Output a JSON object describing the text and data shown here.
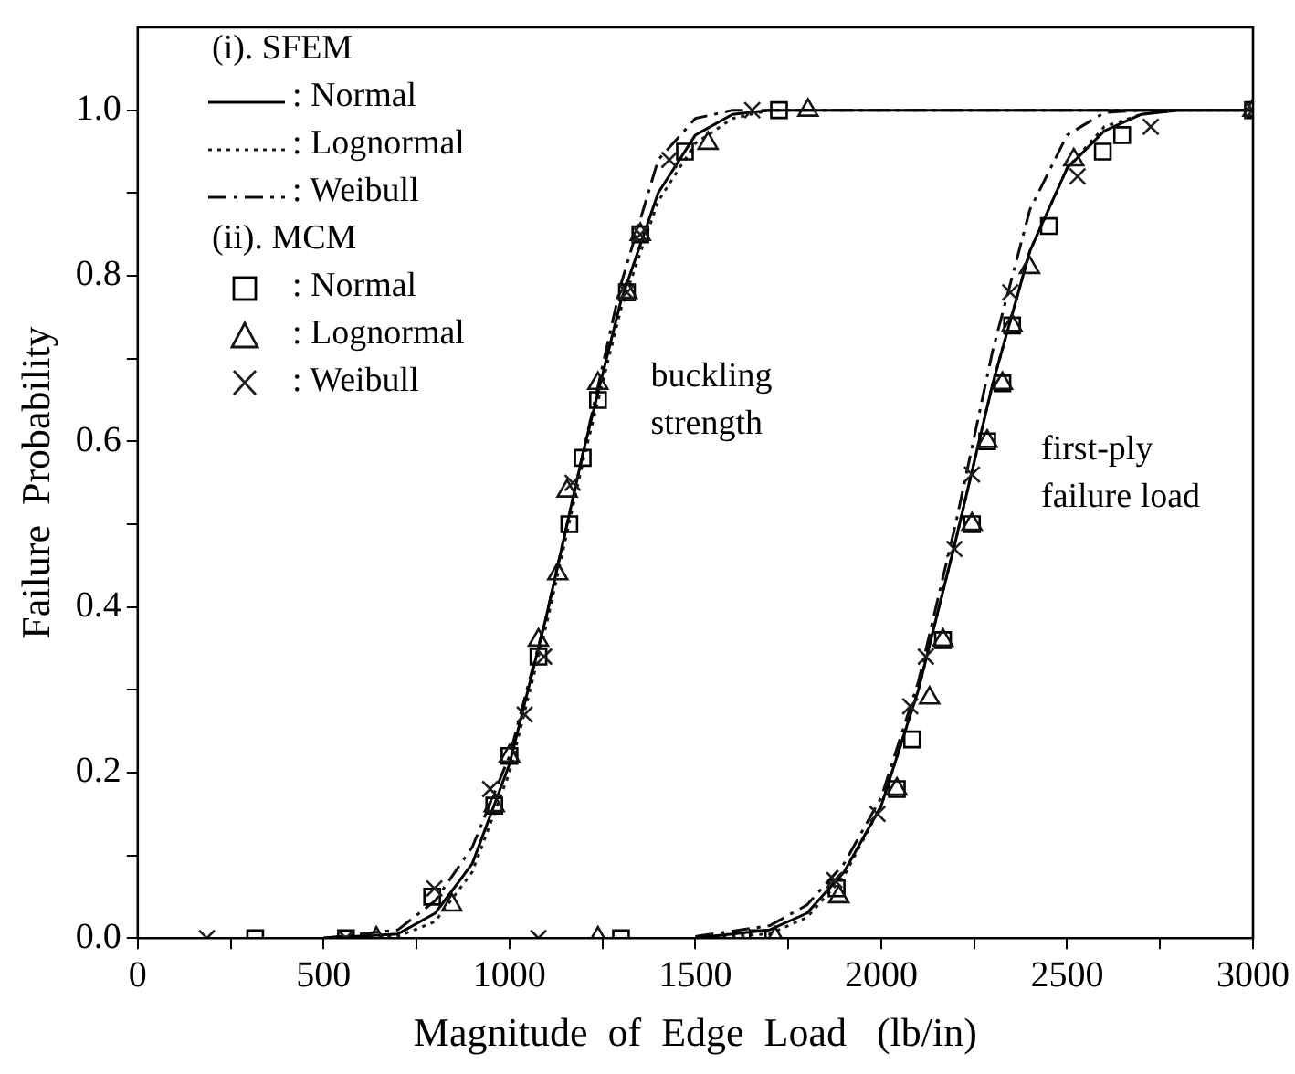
{
  "chart_data": {
    "type": "line",
    "xlabel": "Magnitude  of  Edge  Load   (lb/in)",
    "ylabel": "Failure  Probability",
    "xlim": [
      0,
      3000
    ],
    "ylim": [
      0,
      1.1
    ],
    "xticks": [
      0,
      {
        "value": 250,
        "label": null
      },
      500,
      {
        "value": 750,
        "label": null
      },
      1000,
      {
        "value": 1250,
        "label": null
      },
      1500,
      {
        "value": 1750,
        "label": null
      },
      2000,
      {
        "value": 2250,
        "label": null
      },
      2500,
      {
        "value": 2750,
        "label": null
      },
      3000
    ],
    "yticks": [
      {
        "value": 0,
        "label": "0.0"
      },
      {
        "value": 0.1,
        "label": null
      },
      0.2,
      {
        "value": 0.3,
        "label": null
      },
      0.4,
      {
        "value": 0.5,
        "label": null
      },
      0.6,
      {
        "value": 0.7,
        "label": null
      },
      0.8,
      {
        "value": 0.9,
        "label": null
      },
      {
        "value": 1,
        "label": "1.0"
      }
    ],
    "grid": false,
    "legend": "top left",
    "annotations": [
      "(i).  SFEM",
      "(ii).  MCM",
      "buckling\nstrength",
      "first-ply\nfailure load"
    ],
    "series": [
      {
        "name": ": Normal",
        "line_style": "solid",
        "marker": "none",
        "color": "#000000",
        "x": [
          500,
          700,
          800,
          900,
          1000,
          1100,
          1200,
          1300,
          1400,
          1500,
          1600,
          1700,
          3000,
          1550,
          1500,
          1700,
          1800,
          1900,
          2000,
          2100,
          2200,
          2300,
          2400,
          2500,
          2600,
          2700,
          2800,
          3000
        ],
        "values": [
          0,
          0.005,
          0.03,
          0.09,
          0.21,
          0.39,
          0.59,
          0.77,
          0.9,
          0.97,
          0.995,
          1.0,
          1.0,
          null,
          0,
          0.01,
          0.03,
          0.08,
          0.16,
          0.3,
          0.48,
          0.67,
          0.83,
          0.93,
          0.975,
          0.995,
          1.0,
          1.0
        ]
      },
      {
        "name": ": Lognormal",
        "line_style": "dotted",
        "marker": "none",
        "color": "#1a1a1a",
        "x": [
          500,
          700,
          800,
          900,
          1000,
          1100,
          1200,
          1300,
          1400,
          1500,
          1600,
          1700,
          3000,
          1550,
          1500,
          1700,
          1800,
          1900,
          2000,
          2100,
          2200,
          2300,
          2400,
          2500,
          2600,
          2700,
          2800,
          3000
        ],
        "values": [
          0,
          0.002,
          0.02,
          0.08,
          0.2,
          0.38,
          0.58,
          0.76,
          0.89,
          0.96,
          0.99,
          1.0,
          1.0,
          null,
          0,
          0.005,
          0.025,
          0.075,
          0.16,
          0.3,
          0.48,
          0.67,
          0.83,
          0.93,
          0.98,
          0.995,
          1.0,
          1.0
        ]
      },
      {
        "name": ": Weibull",
        "line_style": "dashed",
        "marker": "none",
        "color": "#0d0d0d",
        "x": [
          500,
          700,
          800,
          900,
          1000,
          1100,
          1200,
          1300,
          1400,
          1500,
          1600,
          3000,
          1550,
          1500,
          1700,
          1800,
          1900,
          2000,
          2100,
          2200,
          2300,
          2400,
          2500,
          2600,
          2700,
          3000
        ],
        "values": [
          0,
          0.01,
          0.045,
          0.11,
          0.22,
          0.39,
          0.59,
          0.79,
          0.94,
          0.99,
          1.0,
          1.0,
          null,
          0.002,
          0.015,
          0.04,
          0.09,
          0.17,
          0.31,
          0.5,
          0.71,
          0.88,
          0.97,
          0.997,
          1.0,
          1.0
        ]
      },
      {
        "name": ": Normal",
        "type": "scatter",
        "marker": "square",
        "color": "#000000",
        "x": [
          316,
          560,
          792,
          959,
          1000,
          1078,
          1161,
          1197,
          1238,
          1300,
          1316,
          1352,
          1472,
          1725,
          1668,
          1880,
          2042,
          2083,
          2166,
          2244,
          2285,
          2326,
          2352,
          2451,
          2596,
          2648,
          3000
        ],
        "values": [
          0,
          0,
          0.05,
          0.16,
          0.22,
          0.34,
          0.5,
          0.58,
          0.65,
          0,
          0.78,
          0.85,
          0.95,
          1.0,
          0,
          0.06,
          0.18,
          0.24,
          0.36,
          0.5,
          0.6,
          0.67,
          0.74,
          0.86,
          0.95,
          0.97,
          1.0
        ]
      },
      {
        "name": ": Lognormal",
        "type": "scatter",
        "marker": "triangle",
        "color": "#141414",
        "x": [
          642,
          845,
          959,
          1000,
          1078,
          1130,
          1155,
          1238,
          1238,
          1316,
          1352,
          1534,
          1803,
          1715,
          1886,
          2042,
          2130,
          2166,
          2244,
          2285,
          2326,
          2352,
          2399,
          2518,
          3000
        ],
        "values": [
          0,
          0.04,
          0.16,
          0.22,
          0.36,
          0.44,
          0.54,
          0.67,
          0,
          0.78,
          0.85,
          0.96,
          1.0,
          0,
          0.05,
          0.18,
          0.29,
          0.36,
          0.5,
          0.6,
          0.67,
          0.74,
          0.81,
          0.94,
          1.0
        ]
      },
      {
        "name": ": Weibull",
        "type": "scatter",
        "marker": "cross",
        "color": "#202020",
        "x": [
          186,
          560,
          798,
          948,
          1041,
          1093,
          1078,
          1170,
          1316,
          1352,
          1430,
          1653,
          1874,
          1990,
          2078,
          2120,
          2197,
          2244,
          2347,
          2528,
          2725,
          3000
        ],
        "values": [
          0,
          0,
          0.06,
          0.18,
          0.27,
          0.34,
          0,
          0.55,
          0.78,
          0.85,
          0.94,
          1.0,
          0.07,
          0.15,
          0.28,
          0.34,
          0.47,
          0.56,
          0.78,
          0.92,
          0.98,
          1.0
        ]
      }
    ]
  }
}
